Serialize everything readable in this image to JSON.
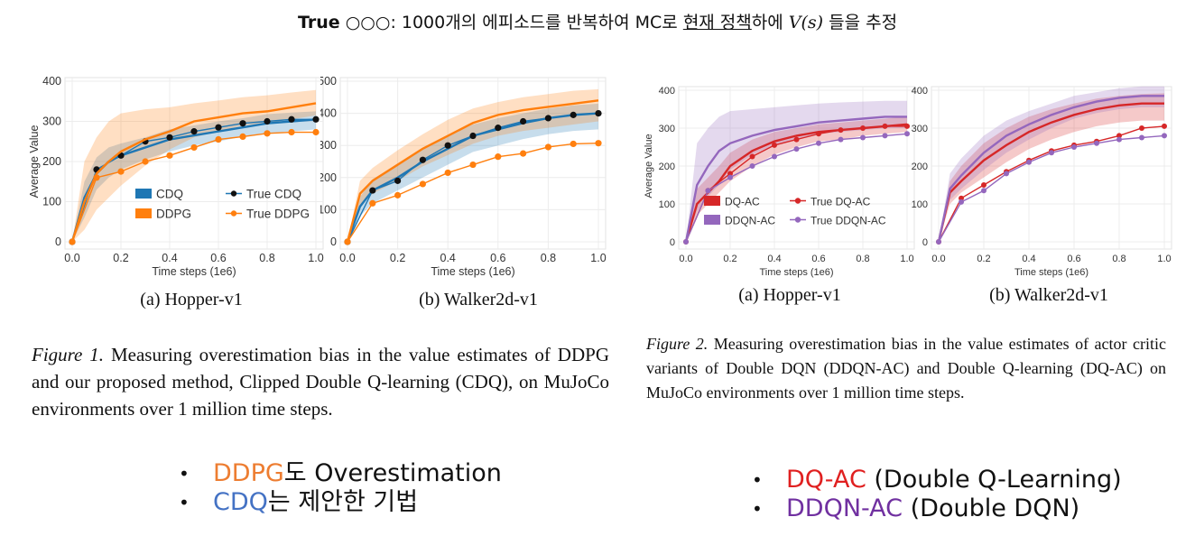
{
  "header": {
    "bold": "True",
    "circles": " ○○○",
    "pre": ": 1000개의 에피소드를 반복하여 MC로 ",
    "underlined": "현재 정책",
    "mid": "하에 ",
    "math": "V(s)",
    "post": " 들을 추정"
  },
  "figure1": {
    "caption_label": "Figure 1.",
    "caption_text": " Measuring overestimation bias in the value estimates of DDPG and our proposed method, Clipped Double Q-learning (CDQ), on MuJoCo environments over 1 million time steps.",
    "legend": [
      "CDQ",
      "True CDQ",
      "DDPG",
      "True DDPG"
    ]
  },
  "figure2": {
    "caption_label": "Figure 2.",
    "caption_text": " Measuring overestimation bias in the value estimates of actor critic variants of Double DQN (DDQN-AC) and Double Q-learning (DQ-AC) on MuJoCo environments over 1 million time steps.",
    "legend": [
      "DQ-AC",
      "True DQ-AC",
      "DDQN-AC",
      "True DDQN-AC"
    ]
  },
  "bullets_left": [
    {
      "colored": "DDPG",
      "rest": "도 Overestimation",
      "color": "#ed7d31"
    },
    {
      "colored": "CDQ",
      "rest": "는 제안한 기법",
      "color": "#4472c4"
    }
  ],
  "bullets_right": [
    {
      "colored": "DQ-AC",
      "rest": " (Double Q-Learning)",
      "color": "#e02020"
    },
    {
      "colored": "DDQN-AC",
      "rest": " (Double DQN)",
      "color": "#7030a0"
    }
  ],
  "chart_data": [
    {
      "type": "line",
      "panel_caption": "(a) Hopper-v1",
      "xlabel": "Time steps (1e6)",
      "ylabel": "Average Value",
      "xlim": [
        0,
        1.0
      ],
      "ylim": [
        0,
        400
      ],
      "xticks": [
        0.0,
        0.2,
        0.4,
        0.6,
        0.8,
        1.0
      ],
      "yticks": [
        0,
        100,
        200,
        300,
        400
      ],
      "grid": true,
      "legend_position": "bottom-right",
      "series": [
        {
          "name": "CDQ",
          "color": "#1f77b4",
          "style": "band",
          "x": [
            0,
            0.05,
            0.1,
            0.15,
            0.2,
            0.3,
            0.4,
            0.5,
            0.6,
            0.7,
            0.8,
            0.9,
            1.0
          ],
          "values": [
            0,
            110,
            170,
            200,
            215,
            235,
            255,
            265,
            275,
            285,
            295,
            300,
            305
          ],
          "band": [
            [
              0,
              0
            ],
            [
              60,
              150
            ],
            [
              130,
              210
            ],
            [
              160,
              235
            ],
            [
              180,
              245
            ],
            [
              205,
              260
            ],
            [
              225,
              280
            ],
            [
              240,
              290
            ],
            [
              250,
              300
            ],
            [
              262,
              308
            ],
            [
              270,
              318
            ],
            [
              275,
              322
            ],
            [
              280,
              325
            ]
          ]
        },
        {
          "name": "True CDQ",
          "color": "#1f77b4",
          "style": "dots",
          "marker_color": "#111111",
          "x": [
            0,
            0.1,
            0.2,
            0.3,
            0.4,
            0.5,
            0.6,
            0.7,
            0.8,
            0.9,
            1.0
          ],
          "values": [
            0,
            180,
            215,
            250,
            260,
            275,
            285,
            295,
            300,
            305,
            305
          ]
        },
        {
          "name": "DDPG",
          "color": "#ff7f0e",
          "style": "band",
          "x": [
            0,
            0.05,
            0.1,
            0.15,
            0.2,
            0.3,
            0.4,
            0.5,
            0.6,
            0.7,
            0.8,
            0.9,
            1.0
          ],
          "values": [
            0,
            100,
            170,
            200,
            225,
            255,
            275,
            300,
            310,
            320,
            325,
            335,
            345
          ],
          "band": [
            [
              0,
              0
            ],
            [
              30,
              200
            ],
            [
              80,
              260
            ],
            [
              110,
              300
            ],
            [
              140,
              320
            ],
            [
              190,
              330
            ],
            [
              230,
              335
            ],
            [
              260,
              345
            ],
            [
              275,
              352
            ],
            [
              290,
              360
            ],
            [
              295,
              365
            ],
            [
              305,
              372
            ],
            [
              315,
              378
            ]
          ]
        },
        {
          "name": "True DDPG",
          "color": "#ff7f0e",
          "style": "dots",
          "marker_color": "#ff7f0e",
          "x": [
            0,
            0.1,
            0.2,
            0.3,
            0.4,
            0.5,
            0.6,
            0.7,
            0.8,
            0.9,
            1.0
          ],
          "values": [
            0,
            160,
            175,
            200,
            215,
            235,
            255,
            262,
            270,
            273,
            273
          ]
        }
      ]
    },
    {
      "type": "line",
      "panel_caption": "(b) Walker2d-v1",
      "xlabel": "Time steps (1e6)",
      "ylabel": "",
      "xlim": [
        0,
        1.0
      ],
      "ylim": [
        0,
        500
      ],
      "xticks": [
        0.0,
        0.2,
        0.4,
        0.6,
        0.8,
        1.0
      ],
      "yticks": [
        0,
        100,
        200,
        300,
        400,
        500
      ],
      "grid": true,
      "series": [
        {
          "name": "CDQ",
          "color": "#1f77b4",
          "style": "band",
          "x": [
            0,
            0.05,
            0.1,
            0.2,
            0.3,
            0.4,
            0.5,
            0.6,
            0.7,
            0.8,
            0.9,
            1.0
          ],
          "values": [
            0,
            110,
            160,
            200,
            250,
            290,
            330,
            350,
            370,
            385,
            395,
            400
          ],
          "band": [
            [
              0,
              0
            ],
            [
              80,
              140
            ],
            [
              120,
              195
            ],
            [
              160,
              240
            ],
            [
              200,
              290
            ],
            [
              240,
              330
            ],
            [
              280,
              365
            ],
            [
              300,
              385
            ],
            [
              320,
              400
            ],
            [
              335,
              415
            ],
            [
              345,
              425
            ],
            [
              350,
              430
            ]
          ]
        },
        {
          "name": "True CDQ",
          "color": "#1f77b4",
          "style": "dots",
          "marker_color": "#111111",
          "x": [
            0,
            0.1,
            0.2,
            0.3,
            0.4,
            0.5,
            0.6,
            0.7,
            0.8,
            0.9,
            1.0
          ],
          "values": [
            0,
            160,
            190,
            255,
            300,
            330,
            355,
            375,
            385,
            395,
            400
          ]
        },
        {
          "name": "DDPG",
          "color": "#ff7f0e",
          "style": "band",
          "x": [
            0,
            0.05,
            0.1,
            0.2,
            0.3,
            0.4,
            0.5,
            0.6,
            0.7,
            0.8,
            0.9,
            1.0
          ],
          "values": [
            0,
            150,
            190,
            240,
            290,
            330,
            370,
            395,
            410,
            420,
            430,
            440
          ],
          "band": [
            [
              0,
              0
            ],
            [
              110,
              190
            ],
            [
              150,
              230
            ],
            [
              190,
              285
            ],
            [
              235,
              335
            ],
            [
              270,
              380
            ],
            [
              305,
              415
            ],
            [
              330,
              435
            ],
            [
              345,
              450
            ],
            [
              355,
              460
            ],
            [
              365,
              470
            ],
            [
              375,
              475
            ]
          ]
        },
        {
          "name": "True DDPG",
          "color": "#ff7f0e",
          "style": "dots",
          "marker_color": "#ff7f0e",
          "x": [
            0,
            0.1,
            0.2,
            0.3,
            0.4,
            0.5,
            0.6,
            0.7,
            0.8,
            0.9,
            1.0
          ],
          "values": [
            0,
            120,
            145,
            180,
            215,
            240,
            265,
            275,
            295,
            305,
            307
          ]
        }
      ]
    },
    {
      "type": "line",
      "panel_caption": "(a) Hopper-v1",
      "xlabel": "Time steps (1e6)",
      "ylabel": "Average Value",
      "xlim": [
        0,
        1.0
      ],
      "ylim": [
        0,
        400
      ],
      "xticks": [
        0.0,
        0.2,
        0.4,
        0.6,
        0.8,
        1.0
      ],
      "yticks": [
        0,
        100,
        200,
        300,
        400
      ],
      "grid": true,
      "legend_position": "bottom-right",
      "series": [
        {
          "name": "DQ-AC",
          "color": "#d62728",
          "style": "band",
          "x": [
            0,
            0.05,
            0.1,
            0.15,
            0.2,
            0.3,
            0.4,
            0.5,
            0.6,
            0.7,
            0.8,
            0.9,
            1.0
          ],
          "values": [
            0,
            100,
            130,
            160,
            200,
            240,
            265,
            280,
            290,
            295,
            300,
            305,
            310
          ],
          "band": [
            [
              0,
              0
            ],
            [
              70,
              140
            ],
            [
              100,
              170
            ],
            [
              130,
              200
            ],
            [
              160,
              235
            ],
            [
              200,
              270
            ],
            [
              230,
              290
            ],
            [
              250,
              300
            ],
            [
              265,
              310
            ],
            [
              270,
              315
            ],
            [
              280,
              320
            ],
            [
              285,
              325
            ],
            [
              290,
              330
            ]
          ]
        },
        {
          "name": "True DQ-AC",
          "color": "#d62728",
          "style": "dots",
          "marker_color": "#d62728",
          "x": [
            0,
            0.1,
            0.2,
            0.3,
            0.4,
            0.5,
            0.6,
            0.7,
            0.8,
            0.9,
            1.0
          ],
          "values": [
            0,
            135,
            180,
            225,
            255,
            270,
            285,
            295,
            300,
            305,
            305
          ]
        },
        {
          "name": "DDQN-AC",
          "color": "#9467bd",
          "style": "band",
          "x": [
            0,
            0.05,
            0.1,
            0.15,
            0.2,
            0.3,
            0.4,
            0.5,
            0.6,
            0.7,
            0.8,
            0.9,
            1.0
          ],
          "values": [
            0,
            150,
            200,
            240,
            260,
            280,
            295,
            305,
            315,
            320,
            325,
            330,
            330
          ],
          "band": [
            [
              0,
              0
            ],
            [
              80,
              260
            ],
            [
              120,
              300
            ],
            [
              150,
              330
            ],
            [
              190,
              345
            ],
            [
              230,
              350
            ],
            [
              255,
              355
            ],
            [
              270,
              360
            ],
            [
              285,
              365
            ],
            [
              290,
              368
            ],
            [
              295,
              370
            ],
            [
              300,
              372
            ],
            [
              300,
              372
            ]
          ]
        },
        {
          "name": "True DDQN-AC",
          "color": "#9467bd",
          "style": "dots",
          "marker_color": "#9467bd",
          "x": [
            0,
            0.1,
            0.2,
            0.3,
            0.4,
            0.5,
            0.6,
            0.7,
            0.8,
            0.9,
            1.0
          ],
          "values": [
            0,
            135,
            170,
            200,
            225,
            245,
            260,
            270,
            275,
            280,
            285
          ]
        }
      ]
    },
    {
      "type": "line",
      "panel_caption": "(b) Walker2d-v1",
      "xlabel": "Time steps (1e6)",
      "ylabel": "",
      "xlim": [
        0,
        1.0
      ],
      "ylim": [
        0,
        400
      ],
      "xticks": [
        0.0,
        0.2,
        0.4,
        0.6,
        0.8,
        1.0
      ],
      "yticks": [
        0,
        100,
        200,
        300,
        400
      ],
      "grid": true,
      "series": [
        {
          "name": "DQ-AC",
          "color": "#d62728",
          "style": "band",
          "x": [
            0,
            0.05,
            0.1,
            0.2,
            0.3,
            0.4,
            0.5,
            0.6,
            0.7,
            0.8,
            0.9,
            1.0
          ],
          "values": [
            0,
            130,
            160,
            215,
            255,
            290,
            315,
            335,
            350,
            360,
            365,
            365
          ],
          "band": [
            [
              0,
              0
            ],
            [
              100,
              160
            ],
            [
              130,
              200
            ],
            [
              170,
              260
            ],
            [
              210,
              300
            ],
            [
              245,
              330
            ],
            [
              270,
              350
            ],
            [
              290,
              365
            ],
            [
              305,
              378
            ],
            [
              315,
              385
            ],
            [
              320,
              390
            ],
            [
              320,
              392
            ]
          ]
        },
        {
          "name": "True DQ-AC",
          "color": "#d62728",
          "style": "dots",
          "marker_color": "#d62728",
          "x": [
            0,
            0.1,
            0.2,
            0.3,
            0.4,
            0.5,
            0.6,
            0.7,
            0.8,
            0.9,
            1.0
          ],
          "values": [
            0,
            115,
            150,
            185,
            215,
            240,
            255,
            265,
            280,
            300,
            305
          ]
        },
        {
          "name": "DDQN-AC",
          "color": "#9467bd",
          "style": "band",
          "x": [
            0,
            0.05,
            0.1,
            0.2,
            0.3,
            0.4,
            0.5,
            0.6,
            0.7,
            0.8,
            0.9,
            1.0
          ],
          "values": [
            0,
            140,
            175,
            235,
            280,
            310,
            335,
            355,
            370,
            380,
            385,
            385
          ],
          "band": [
            [
              0,
              0
            ],
            [
              110,
              180
            ],
            [
              140,
              220
            ],
            [
              190,
              280
            ],
            [
              235,
              320
            ],
            [
              270,
              345
            ],
            [
              300,
              365
            ],
            [
              325,
              385
            ],
            [
              340,
              395
            ],
            [
              350,
              405
            ],
            [
              355,
              410
            ],
            [
              355,
              410
            ]
          ]
        },
        {
          "name": "True DDQN-AC",
          "color": "#9467bd",
          "style": "dots",
          "marker_color": "#9467bd",
          "x": [
            0,
            0.1,
            0.2,
            0.3,
            0.4,
            0.5,
            0.6,
            0.7,
            0.8,
            0.9,
            1.0
          ],
          "values": [
            0,
            105,
            135,
            180,
            210,
            235,
            250,
            260,
            270,
            275,
            280
          ]
        }
      ]
    }
  ]
}
